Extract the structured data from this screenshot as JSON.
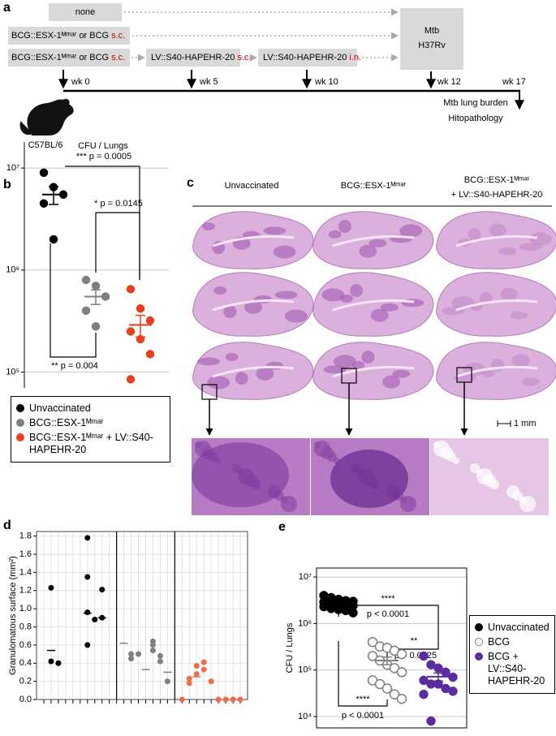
{
  "diagram": {
    "panel_label": "a",
    "none": "none",
    "prime_rows": [
      {
        "text": "BCG::ESX-1ᴹᵐᵃʳ or BCG",
        "route": "s.c."
      },
      {
        "text": "BCG::ESX-1ᴹᵐᵃʳ or BCG",
        "route": "s.c."
      }
    ],
    "boosts": [
      {
        "text": "LV::S40-HAPEHR-20",
        "route": "s.c."
      },
      {
        "text": "LV::S40-HAPEHR-20",
        "route": "i.n."
      }
    ],
    "challenge": [
      "Mtb",
      "H37Rv"
    ],
    "timeline": [
      "wk 0",
      "wk 5",
      "wk 10",
      "wk 12",
      "wk 17"
    ],
    "readout": [
      "Mtb lung burden",
      "Hitopathology"
    ],
    "mouse": "C57BL/6"
  },
  "histology": {
    "panel_label": "c",
    "columns": [
      [
        "Unvaccinated"
      ],
      [
        "BCG::ESX-1ᴹᵐᵃʳ"
      ],
      [
        "BCG::ESX-1ᴹᵐᵃʳ",
        "+ LV::S40-HAPEHR-20"
      ]
    ],
    "scale_bar": "1 mm"
  },
  "chart_data": [
    {
      "type": "strip",
      "panel_label": "b",
      "title": "CFU / Lungs",
      "log_scale": true,
      "ylim": [
        70000,
        18000000
      ],
      "yticks": [
        {
          "value": 100000,
          "label": "10⁵"
        },
        {
          "value": 1000000,
          "label": "10⁶"
        },
        {
          "value": 10000000,
          "label": "10⁷"
        }
      ],
      "grid": true,
      "series": [
        {
          "name": "Unvaccinated",
          "color": "#000000",
          "marker": "filled",
          "values": [
            9000000,
            6500000,
            5500000,
            4500000,
            2000000
          ],
          "mean": 5500000,
          "sem": 1100000
        },
        {
          "name": "BCG::ESX-1ᴹᵐᵃʳ",
          "color": "#7f7f7f",
          "marker": "filled",
          "values": [
            800000,
            700000,
            550000,
            400000,
            280000
          ],
          "mean": 550000,
          "sem": 90000
        },
        {
          "name": "BCG::ESX-1ᴹᵐᵃʳ + LV::S40-HAPEHR-20",
          "color": "#e8401c",
          "marker": "filled",
          "values": [
            650000,
            420000,
            320000,
            250000,
            210000,
            150000,
            85000
          ],
          "mean": 290000,
          "sem": 70000
        }
      ],
      "annotations": [
        "*** p = 0.0005",
        "* p = 0.0145",
        "** p = 0.004"
      ]
    },
    {
      "type": "scatter",
      "panel_label": "d",
      "ylabel": "Granulomatous surface (mm²)",
      "xlim": [
        0,
        29
      ],
      "xticks": [
        1,
        2,
        3,
        4,
        5,
        6,
        7,
        8,
        9,
        10,
        11,
        12,
        13,
        14,
        15,
        16,
        17,
        18,
        19,
        20,
        21,
        22,
        23,
        24,
        25,
        26,
        27,
        28
      ],
      "ylim": [
        0,
        1.85
      ],
      "yticks": [
        {
          "value": 0,
          "label": "0.0"
        },
        0.2,
        0.4,
        0.6,
        0.8,
        {
          "value": 1,
          "label": "1.0"
        },
        1.2,
        1.4,
        1.6,
        1.8
      ],
      "grid": true,
      "series": [
        {
          "color": "#000000",
          "marker": "dot",
          "x": [
            2,
            2,
            3,
            7,
            7,
            7,
            7,
            8,
            9,
            9
          ],
          "values": [
            1.23,
            0.42,
            0.4,
            1.78,
            1.35,
            0.96,
            0.6,
            0.88,
            1.21,
            0.9
          ]
        },
        {
          "color": "#000000",
          "marker": "dash",
          "x": [
            2,
            7,
            9
          ],
          "values": [
            0.54,
            0.95,
            0.9
          ]
        },
        {
          "color": "#7f7f7f",
          "marker": "dot",
          "x": [
            13,
            13,
            14,
            16,
            16,
            16,
            17,
            17,
            18
          ],
          "values": [
            0.5,
            0.45,
            0.5,
            0.6,
            0.64,
            0.54,
            0.48,
            0.42,
            0.2
          ]
        },
        {
          "color": "#7f7f7f",
          "marker": "dash",
          "x": [
            12,
            15,
            18
          ],
          "values": [
            0.62,
            0.33,
            0.3
          ]
        },
        {
          "color": "#f26b4a",
          "marker": "dot",
          "x": [
            20,
            21,
            21,
            22,
            22,
            23,
            23,
            24,
            25,
            26,
            27,
            28
          ],
          "values": [
            0,
            0.18,
            0.23,
            0.37,
            0.28,
            0.41,
            0.33,
            0.2,
            0,
            0,
            0,
            0
          ]
        },
        {
          "color": "#f26b4a",
          "marker": "dash",
          "x": [
            22
          ],
          "values": [
            0.25
          ]
        }
      ]
    },
    {
      "type": "strip",
      "panel_label": "e",
      "ylabel": "CFU / Lungs",
      "log_scale": true,
      "ylim": [
        5700,
        15600000
      ],
      "yticks": [
        {
          "value": 10000,
          "label": "10⁴"
        },
        {
          "value": 100000,
          "label": "10⁵"
        },
        {
          "value": 1000000,
          "label": "10⁶"
        },
        {
          "value": 10000000,
          "label": "10⁷"
        }
      ],
      "grid": true,
      "series": [
        {
          "name": "Unvaccinated",
          "color": "#000000",
          "marker": "filled",
          "values": [
            4000000,
            3600000,
            3300000,
            3100000,
            3000000,
            2900000,
            2800000,
            2600000,
            2500000,
            2400000,
            2300000,
            2100000,
            2000000,
            1900000,
            1700000
          ],
          "mean": 2750000,
          "sem": 170000
        },
        {
          "name": "BCG",
          "color": "#7f7f7f",
          "marker": "open",
          "values": [
            400000,
            320000,
            300000,
            260000,
            220000,
            200000,
            160000,
            130000,
            110000,
            90000,
            60000,
            50000,
            40000,
            30000,
            24000
          ],
          "mean": 160000,
          "sem": 30000
        },
        {
          "name": "BCG + LV::S40-HAPEHR-20",
          "color": "#5b2ca0",
          "marker": "filled",
          "values": [
            200000,
            130000,
            110000,
            90000,
            70000,
            60000,
            50000,
            50000,
            40000,
            35000,
            30000,
            8000
          ],
          "mean": 72000,
          "sem": 14000
        }
      ],
      "annotations": [
        "****",
        "p < 0.0001",
        "**",
        "p = 0.0025",
        "****",
        "p < 0.0001"
      ]
    }
  ]
}
